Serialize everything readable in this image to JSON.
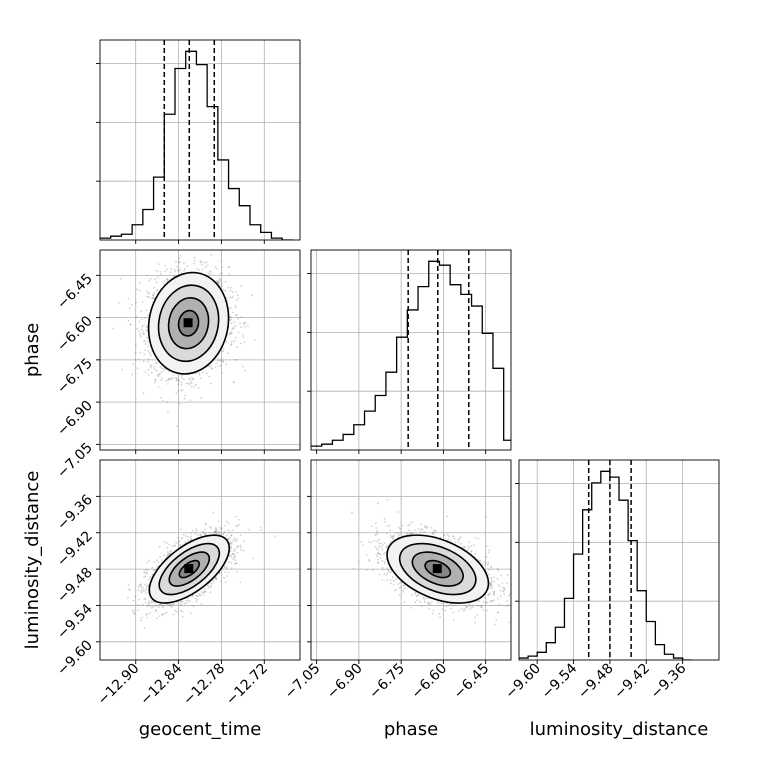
{
  "chart_data": {
    "type": "corner",
    "parameters": [
      "geocent_time",
      "phase",
      "luminosity_distance"
    ],
    "axis_labels": {
      "geocent_time": "geocent_time",
      "phase": "phase",
      "luminosity_distance": "luminosity_distance"
    },
    "ranges": {
      "geocent_time": [
        -12.95,
        -12.67
      ],
      "phase": [
        -7.07,
        -6.36
      ],
      "luminosity_distance": [
        -9.63,
        -9.3
      ]
    },
    "ticks": {
      "geocent_time": [
        -12.9,
        -12.84,
        -12.78,
        -12.72
      ],
      "phase": [
        -7.05,
        -6.9,
        -6.75,
        -6.6,
        -6.45
      ],
      "luminosity_distance": [
        -9.6,
        -9.54,
        -9.48,
        -9.42,
        -9.36
      ]
    },
    "tick_labels": {
      "geocent_time": [
        "−12.90",
        "−12.84",
        "−12.78",
        "−12.72"
      ],
      "phase": [
        "−7.05",
        "−6.90",
        "−6.75",
        "−6.60",
        "−6.45"
      ],
      "luminosity_distance": [
        "−9.60",
        "−9.54",
        "−9.48",
        "−9.42",
        "−9.36"
      ]
    },
    "quantiles": {
      "geocent_time": [
        -12.86,
        -12.825,
        -12.79
      ],
      "phase": [
        -6.725,
        -6.62,
        -6.51
      ],
      "luminosity_distance": [
        -9.515,
        -9.48,
        -9.445
      ]
    },
    "histograms": {
      "geocent_time": {
        "bin_edges": [
          -12.95,
          -12.935,
          -12.92,
          -12.905,
          -12.89,
          -12.875,
          -12.86,
          -12.845,
          -12.83,
          -12.815,
          -12.8,
          -12.785,
          -12.77,
          -12.755,
          -12.74,
          -12.725,
          -12.71,
          -12.695,
          -12.68
        ],
        "counts": [
          1,
          2,
          3,
          8,
          16,
          33,
          66,
          90,
          99,
          92,
          70,
          42,
          27,
          18,
          8,
          4,
          1,
          0
        ]
      },
      "phase": {
        "bin_edges": [
          -7.07,
          -7.032,
          -6.994,
          -6.956,
          -6.918,
          -6.88,
          -6.842,
          -6.804,
          -6.766,
          -6.728,
          -6.69,
          -6.652,
          -6.614,
          -6.576,
          -6.538,
          -6.5,
          -6.462,
          -6.424,
          -6.386,
          -6.36
        ],
        "counts": [
          2,
          3,
          5,
          8,
          13,
          20,
          28,
          40,
          58,
          72,
          84,
          97,
          95,
          85,
          80,
          74,
          60,
          42,
          5
        ]
      },
      "luminosity_distance": {
        "bin_edges": [
          -9.63,
          -9.615,
          -9.6,
          -9.585,
          -9.57,
          -9.555,
          -9.54,
          -9.525,
          -9.51,
          -9.495,
          -9.48,
          -9.465,
          -9.45,
          -9.435,
          -9.42,
          -9.405,
          -9.39,
          -9.375,
          -9.36,
          -9.345
        ],
        "counts": [
          1,
          2,
          4,
          9,
          17,
          32,
          55,
          78,
          92,
          98,
          95,
          83,
          62,
          36,
          20,
          8,
          3,
          1,
          0
        ]
      }
    },
    "joint_2d": [
      {
        "x_param": "geocent_time",
        "y_param": "phase",
        "center": [
          -12.826,
          -6.62
        ],
        "sigma": [
          0.028,
          0.09
        ],
        "correlation": 0.1
      },
      {
        "x_param": "geocent_time",
        "y_param": "luminosity_distance",
        "center": [
          -12.825,
          -9.48
        ],
        "sigma": [
          0.028,
          0.028
        ],
        "correlation": 0.62
      },
      {
        "x_param": "phase",
        "y_param": "luminosity_distance",
        "center": [
          -6.62,
          -9.48
        ],
        "sigma": [
          0.09,
          0.028
        ],
        "correlation": -0.42
      }
    ],
    "contour_levels_sigma": [
      0.5,
      1.0,
      1.5,
      2.0
    ],
    "grid": true,
    "colors": {
      "line": "#000000",
      "grid": "#b0b0b0",
      "scatter": "#7f7f7f"
    }
  }
}
